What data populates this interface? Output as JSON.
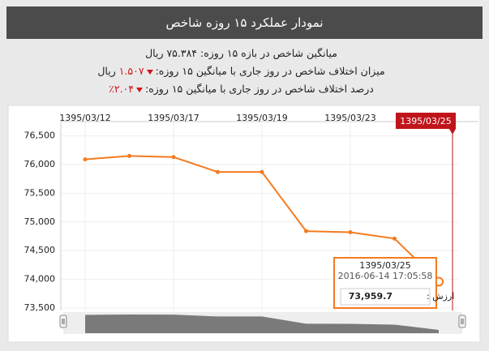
{
  "header": {
    "title": "نمودار عملکرد ۱۵ روزه شاخص"
  },
  "summary": {
    "average": "میانگین شاخص در بازه ۱۵ روزه: ۷۵.۳۸۴ ریال",
    "difference": {
      "label": "میزان اختلاف شاخص در روز جاری با میانگین ۱۵ روزه:",
      "value": "۱.۵۰۷",
      "unit": "ریال"
    },
    "percent": {
      "label": "درصد اختلاف شاخص در روز جاری با میانگین ۱۵ روزه:",
      "value": "۲.۰۴٪"
    }
  },
  "chart_data": {
    "type": "line",
    "categories": [
      "1395/03/12",
      null,
      "1395/03/17",
      null,
      "1395/03/19",
      null,
      "1395/03/23",
      null,
      "1395/03/25"
    ],
    "series": [
      {
        "color": "#f47b20",
        "values": [
          76090,
          76150,
          76130,
          75870,
          75870,
          74840,
          74820,
          74710,
          73959.7
        ]
      }
    ],
    "ylim": [
      73500,
      76700
    ],
    "yticks": [
      {
        "value": 73500,
        "label": "73,500"
      },
      {
        "value": 74000,
        "label": "74,000"
      },
      {
        "value": 74500,
        "label": "74,500"
      },
      {
        "value": 75000,
        "label": "75,000"
      },
      {
        "value": 75500,
        "label": "75,500"
      },
      {
        "value": 76000,
        "label": "76,000"
      },
      {
        "value": 76500,
        "label": "76,500"
      }
    ],
    "grid": true,
    "crosshair_color": "#c0141b",
    "tooltip": {
      "time": "2016-06-14 17:05:58",
      "value_prefix": "ارزش :",
      "value": "73,959.7"
    }
  }
}
